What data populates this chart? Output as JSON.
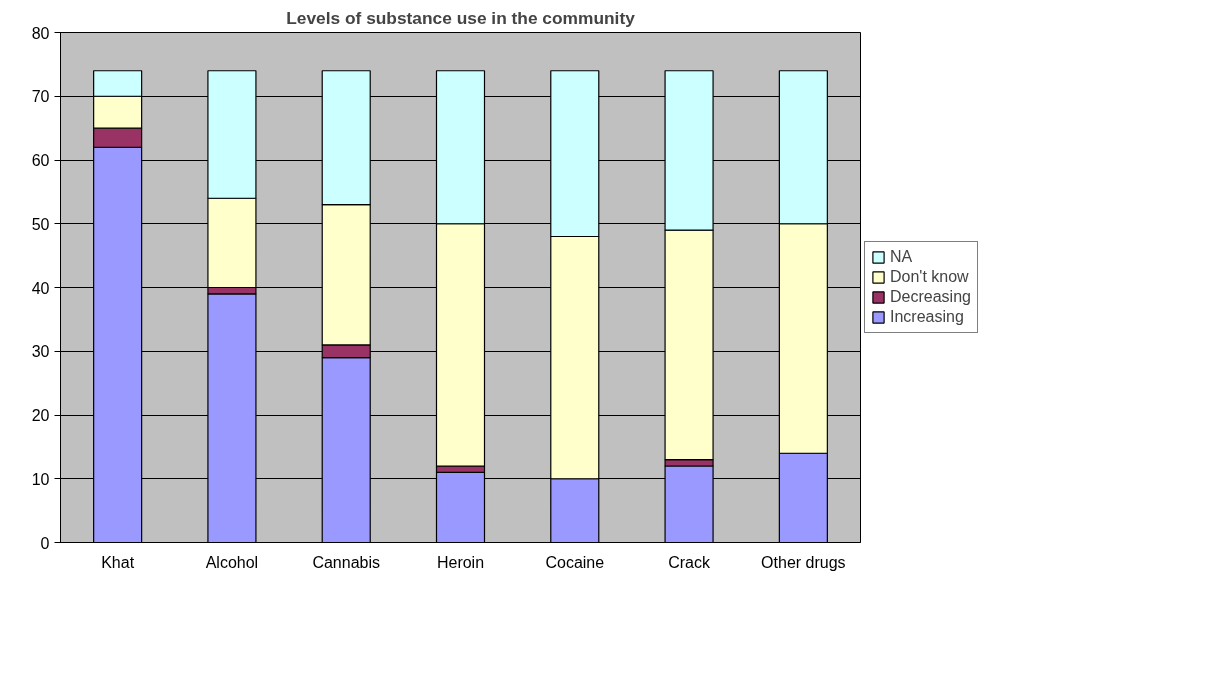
{
  "chart_data": {
    "type": "bar",
    "title": "Levels of substance use in the community",
    "stacked": true,
    "categories": [
      "Khat",
      "Alcohol",
      "Cannabis",
      "Heroin",
      "Cocaine",
      "Crack",
      "Other drugs"
    ],
    "series": [
      {
        "name": "Increasing",
        "color": "#9999ff",
        "values": [
          62,
          39,
          29,
          11,
          10,
          12,
          14
        ]
      },
      {
        "name": "Decreasing",
        "color": "#993366",
        "values": [
          3,
          1,
          2,
          1,
          0,
          1,
          0
        ]
      },
      {
        "name": "Don't know",
        "color": "#ffffcc",
        "values": [
          5,
          14,
          22,
          38,
          38,
          36,
          36
        ]
      },
      {
        "name": "NA",
        "color": "#ccffff",
        "values": [
          4,
          20,
          21,
          24,
          26,
          25,
          24
        ]
      }
    ],
    "ylim": [
      0,
      80
    ],
    "yticks": [
      0,
      10,
      20,
      30,
      40,
      50,
      60,
      70,
      80
    ],
    "grid": "y",
    "legend": "right"
  }
}
